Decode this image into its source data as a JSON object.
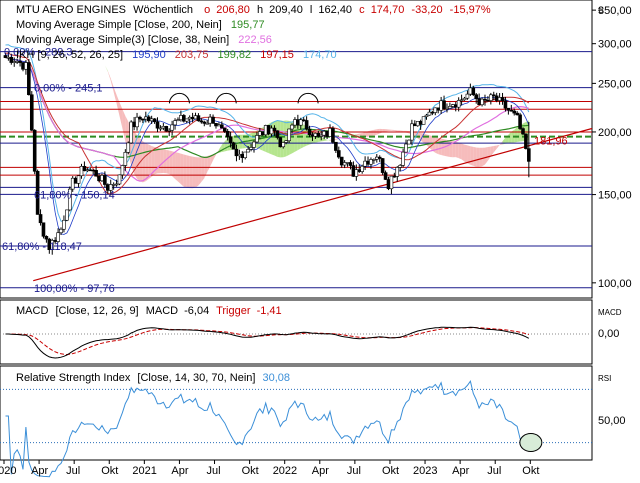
{
  "header": {
    "symbol": "MTU AERO ENGINES",
    "interval": "Wöchentlich",
    "o_label": "o",
    "o_value": "206,80",
    "h_value": "209,40",
    "l_value": "162,40",
    "c_label": "c",
    "c_value": "174,70",
    "change_abs": "-33,20",
    "change_pct": "-15,97%",
    "currency": "€"
  },
  "indicators": [
    {
      "text": "Moving Average Simple  [Close, 200, Nein]",
      "value": "195,77",
      "color": "#2e8b22"
    },
    {
      "text": "Moving Average Simple(3)  [Close, 38, Nein]",
      "value": "222,56",
      "color": "#e070e0"
    },
    {
      "text": "IKH  [9, 26, 52, 26, 25]",
      "values": [
        "195,90",
        "203,75",
        "199,82",
        "197,15",
        "174,70"
      ],
      "colors": [
        "#1e3cc8",
        "#c83232",
        "#2e8b22",
        "#c80000",
        "#56b4e9"
      ]
    }
  ],
  "colors": {
    "up_candle": "#ffffff",
    "down_candle": "#000000",
    "fib": "#1a1a8c",
    "trend": "#c00000",
    "ma200": "#2e8b22",
    "ma38": "#e070e0",
    "cloud_green": "#a8e07a",
    "cloud_red": "#f4b0b0",
    "macd": "#000000",
    "trigger": "#c80000",
    "rsi": "#3b8fd8",
    "band": "#2b6fb8"
  },
  "price_axis": {
    "scale": "log",
    "ylim": [
      95,
      360
    ],
    "ticks": [
      "350,00",
      "300,00",
      "250,00",
      "200,00",
      "150,00",
      "100,00"
    ]
  },
  "macd_panel": {
    "title_name": "MACD",
    "params": "[Close, 12, 26, 9]",
    "macd_label": "MACD",
    "macd_value": "-6,04",
    "trigger_label": "Trigger",
    "trigger_value": "-1,41",
    "axis_tag": "MACD",
    "tick": "0,00"
  },
  "rsi_panel": {
    "title_name": "Relative Strength Index",
    "params": "[Close, 14, 30, 70, Nein]",
    "value": "30,08",
    "axis_tag": "RSI",
    "tick": "50,00"
  },
  "x_axis": {
    "labels": [
      "2020",
      "Apr",
      "Jul",
      "Okt",
      "2021",
      "Apr",
      "Jul",
      "Okt",
      "2022",
      "Apr",
      "Jul",
      "Okt",
      "2023",
      "Apr",
      "Jul",
      "Okt"
    ]
  },
  "fib_labels": [
    {
      "text": "0,00% - 289,3",
      "price": 289.3
    },
    {
      "text": "0,00% - 245,1",
      "price": 245.1
    },
    {
      "text": "61,80% - 150,14",
      "price": 150.14
    },
    {
      "text": "61,80% - 118,47",
      "price": 118.47
    },
    {
      "text": "100,00% - 97,76",
      "price": 97.76
    }
  ],
  "annotation": {
    "text": "181,96",
    "price": 181.96
  },
  "chart_data": {
    "type": "candlestick",
    "title": "MTU AERO ENGINES",
    "frequency": "weekly",
    "x_range": [
      "2020-01",
      "2023-10"
    ],
    "ylim": [
      95,
      360
    ],
    "horizontal_levels": [
      289.3,
      245.1,
      230,
      222,
      200,
      195.77,
      190,
      170,
      164,
      155,
      150.14,
      118.47,
      97.76
    ],
    "trendline": {
      "start": {
        "date": "2020-03",
        "price": 101
      },
      "end": {
        "date": "2023-10",
        "price": 200
      }
    },
    "last_close": 174.7,
    "series": [
      {
        "name": "Close",
        "points": [
          [
            "2020-01",
            280
          ],
          [
            "2020-02",
            270
          ],
          [
            "2020-03",
            135
          ],
          [
            "2020-04",
            118
          ],
          [
            "2020-05",
            128
          ],
          [
            "2020-06",
            158
          ],
          [
            "2020-07",
            170
          ],
          [
            "2020-08",
            165
          ],
          [
            "2020-09",
            155
          ],
          [
            "2020-10",
            162
          ],
          [
            "2020-11",
            205
          ],
          [
            "2020-12",
            215
          ],
          [
            "2021-01",
            208
          ],
          [
            "2021-02",
            205
          ],
          [
            "2021-03",
            210
          ],
          [
            "2021-04",
            214
          ],
          [
            "2021-05",
            210
          ],
          [
            "2021-06",
            212
          ],
          [
            "2021-07",
            196
          ],
          [
            "2021-08",
            178
          ],
          [
            "2021-09",
            186
          ],
          [
            "2021-10",
            198
          ],
          [
            "2021-11",
            205
          ],
          [
            "2021-12",
            186
          ],
          [
            "2022-01",
            212
          ],
          [
            "2022-02",
            205
          ],
          [
            "2022-03",
            194
          ],
          [
            "2022-04",
            200
          ],
          [
            "2022-05",
            176
          ],
          [
            "2022-06",
            166
          ],
          [
            "2022-07",
            175
          ],
          [
            "2022-08",
            180
          ],
          [
            "2022-09",
            158
          ],
          [
            "2022-10",
            175
          ],
          [
            "2022-11",
            205
          ],
          [
            "2022-12",
            210
          ],
          [
            "2023-01",
            225
          ],
          [
            "2023-02",
            228
          ],
          [
            "2023-03",
            230
          ],
          [
            "2023-04",
            240
          ],
          [
            "2023-05",
            228
          ],
          [
            "2023-06",
            234
          ],
          [
            "2023-07",
            224
          ],
          [
            "2023-08",
            212
          ],
          [
            "2023-09",
            174.7
          ]
        ]
      },
      {
        "name": "Moving Average Simple [Close, 200, Nein]",
        "last": 195.77
      },
      {
        "name": "Moving Average Simple(3) [Close, 38, Nein]",
        "last": 222.56
      },
      {
        "name": "MACD",
        "last": -6.04
      },
      {
        "name": "Trigger",
        "last": -1.41
      },
      {
        "name": "RSI",
        "last": 30.08
      }
    ]
  }
}
